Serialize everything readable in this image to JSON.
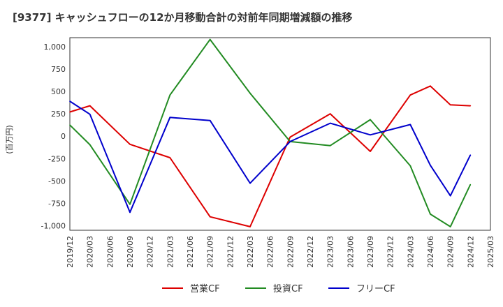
{
  "chart_data": {
    "type": "line",
    "title": "[9377]  キャッシュフローの12か月移動合計の対前年同期増減額の推移",
    "ylabel": "(百万円)",
    "xlabel": "",
    "ylim": [
      -1050,
      1100
    ],
    "yticks": [
      -1000,
      -750,
      -500,
      -250,
      0,
      250,
      500,
      750,
      1000
    ],
    "ytick_labels": [
      "-1,000",
      "-750",
      "-500",
      "-250",
      "0",
      "250",
      "500",
      "750",
      "1,000"
    ],
    "categories": [
      "2019/12",
      "2020/03",
      "2020/06",
      "2020/09",
      "2020/12",
      "2021/03",
      "2021/06",
      "2021/09",
      "2021/12",
      "2022/03",
      "2022/06",
      "2022/09",
      "2022/12",
      "2023/03",
      "2023/06",
      "2023/09",
      "2023/12",
      "2024/03",
      "2024/06",
      "2024/09",
      "2024/12",
      "2025/03"
    ],
    "grid": true,
    "legend_position": "bottom",
    "series": [
      {
        "name": "営業CF",
        "color": "#dd0000",
        "values": [
          270,
          340,
          null,
          -90,
          null,
          -240,
          null,
          -900,
          null,
          -1010,
          null,
          -10,
          null,
          250,
          null,
          -170,
          null,
          460,
          560,
          350,
          340,
          null
        ]
      },
      {
        "name": "投資CF",
        "color": "#228b22",
        "values": [
          125,
          -95,
          null,
          -760,
          null,
          460,
          null,
          1080,
          null,
          480,
          null,
          -60,
          null,
          -105,
          null,
          185,
          null,
          -330,
          -870,
          -1010,
          -540,
          null
        ]
      },
      {
        "name": "フリーCF",
        "color": "#0000cc",
        "values": [
          390,
          245,
          null,
          -850,
          null,
          210,
          null,
          175,
          null,
          -525,
          null,
          -60,
          null,
          145,
          null,
          15,
          null,
          130,
          -325,
          -665,
          -210,
          null
        ]
      }
    ]
  }
}
